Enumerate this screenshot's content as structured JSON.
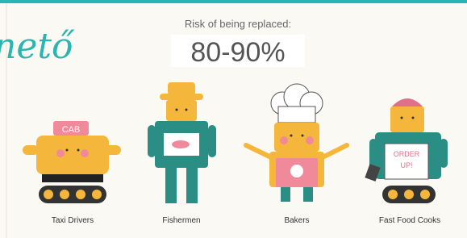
{
  "watermark": "nető",
  "header": {
    "caption": "Risk of being replaced:",
    "risk": "80-90%"
  },
  "jobs": [
    {
      "label": "Taxi Drivers",
      "sign": "CAB"
    },
    {
      "label": "Fishermen"
    },
    {
      "label": "Bakers"
    },
    {
      "label": "Fast Food Cooks",
      "sign_lines": [
        "ORDER",
        "UP!"
      ]
    }
  ]
}
